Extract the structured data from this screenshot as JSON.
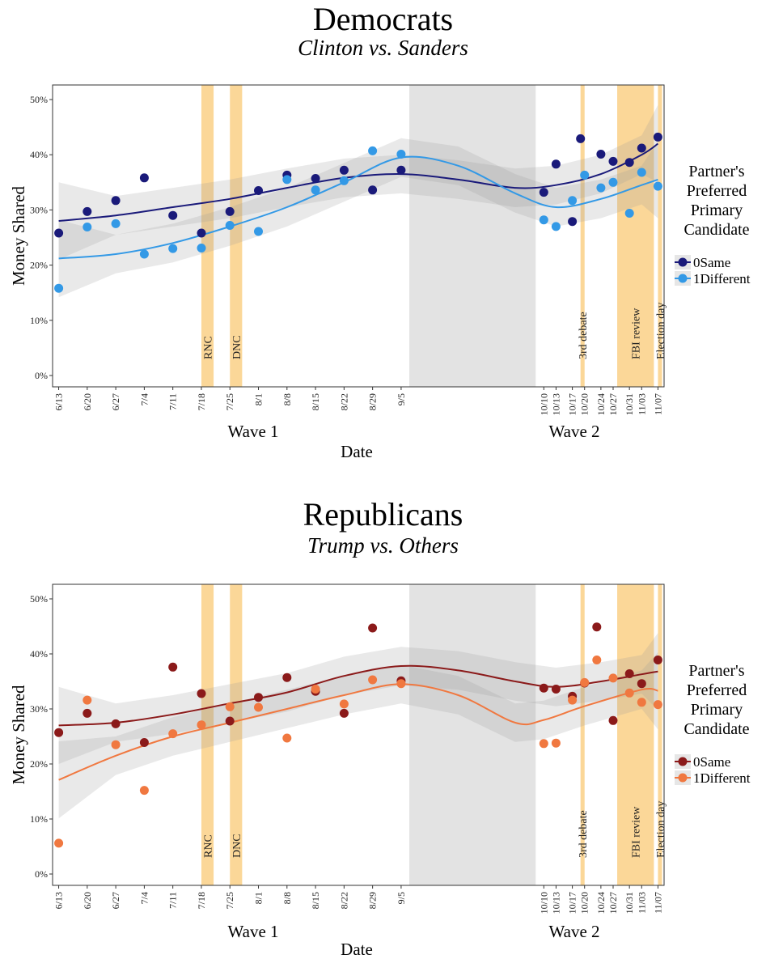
{
  "chart_data": [
    {
      "type": "scatter",
      "title": "Democrats",
      "subtitle": "Clinton vs. Sanders",
      "xlabel": "Date",
      "ylabel": "Money Shared",
      "ylim": [
        0,
        50
      ],
      "yticks": [
        "0%",
        "10%",
        "20%",
        "30%",
        "40%",
        "50%"
      ],
      "x_tick_labels": [
        "6/13",
        "6/20",
        "6/27",
        "7/4",
        "7/11",
        "7/18",
        "7/25",
        "8/1",
        "8/8",
        "8/15",
        "8/22",
        "8/29",
        "9/5",
        "10/10",
        "10/13",
        "10/17",
        "10/20",
        "10/24",
        "10/27",
        "10/31",
        "11/03",
        "11/07"
      ],
      "wave_labels": [
        "Wave 1",
        "Wave 2"
      ],
      "events": [
        {
          "label": "RNC",
          "from": "7/18",
          "to": "7/21"
        },
        {
          "label": "DNC",
          "from": "7/25",
          "to": "7/28"
        },
        {
          "label": "3rd debate",
          "from": "10/19",
          "to": "10/20"
        },
        {
          "label": "FBI review",
          "from": "10/28",
          "to": "11/06"
        },
        {
          "label": "Election day",
          "from": "11/07",
          "to": "11/08"
        }
      ],
      "gap": {
        "from": "9/7",
        "to": "10/8"
      },
      "legend": {
        "title": "Partner's Preferred Primary Candidate",
        "position": "right",
        "items": [
          "0Same",
          "1Different"
        ]
      },
      "series": [
        {
          "name": "0Same",
          "color": "#1a1a7a",
          "points": [
            [
              "6/13",
              25.8
            ],
            [
              "6/20",
              29.7
            ],
            [
              "6/27",
              31.7
            ],
            [
              "7/4",
              35.8
            ],
            [
              "7/11",
              29
            ],
            [
              "7/18",
              25.8
            ],
            [
              "7/25",
              29.7
            ],
            [
              "8/1",
              33.5
            ],
            [
              "8/8",
              36.3
            ],
            [
              "8/15",
              35.7
            ],
            [
              "8/22",
              37.2
            ],
            [
              "8/29",
              33.6
            ],
            [
              "9/5",
              37.2
            ],
            [
              "10/10",
              33.2
            ],
            [
              "10/13",
              38.3
            ],
            [
              "10/17",
              27.9
            ],
            [
              "10/19",
              42.9
            ],
            [
              "10/24",
              40.1
            ],
            [
              "10/27",
              38.8
            ],
            [
              "10/31",
              38.6
            ],
            [
              "11/03",
              41.2
            ],
            [
              "11/07",
              43.2
            ]
          ],
          "trend": [
            [
              "6/13",
              28
            ],
            [
              "6/27",
              29
            ],
            [
              "7/11",
              30.5
            ],
            [
              "7/25",
              32
            ],
            [
              "8/8",
              34
            ],
            [
              "8/22",
              35.8
            ],
            [
              "9/5",
              36.5
            ],
            [
              "9/19",
              35.5
            ],
            [
              "10/03",
              34
            ],
            [
              "10/13",
              34.5
            ],
            [
              "10/24",
              36.5
            ],
            [
              "11/03",
              40
            ],
            [
              "11/07",
              42
            ]
          ]
        },
        {
          "name": "1Different",
          "color": "#3399e6",
          "points": [
            [
              "6/13",
              15.8
            ],
            [
              "6/20",
              26.9
            ],
            [
              "6/27",
              27.5
            ],
            [
              "7/4",
              22
            ],
            [
              "7/11",
              23
            ],
            [
              "7/18",
              23.1
            ],
            [
              "7/25",
              27.2
            ],
            [
              "8/1",
              26.1
            ],
            [
              "8/8",
              35.5
            ],
            [
              "8/15",
              33.6
            ],
            [
              "8/22",
              35.3
            ],
            [
              "8/29",
              40.7
            ],
            [
              "9/5",
              40.1
            ],
            [
              "10/10",
              28.2
            ],
            [
              "10/13",
              27
            ],
            [
              "10/17",
              31.7
            ],
            [
              "10/20",
              36.3
            ],
            [
              "10/24",
              34
            ],
            [
              "10/27",
              35
            ],
            [
              "10/31",
              29.4
            ],
            [
              "11/03",
              36.8
            ],
            [
              "11/07",
              34.3
            ]
          ],
          "trend": [
            [
              "6/13",
              21.2
            ],
            [
              "6/27",
              22
            ],
            [
              "7/11",
              24
            ],
            [
              "7/25",
              27
            ],
            [
              "8/8",
              30.5
            ],
            [
              "8/22",
              35
            ],
            [
              "9/5",
              39.5
            ],
            [
              "9/19",
              38
            ],
            [
              "10/03",
              33
            ],
            [
              "10/13",
              30.5
            ],
            [
              "10/24",
              32
            ],
            [
              "11/03",
              34.5
            ],
            [
              "11/07",
              35.5
            ]
          ]
        }
      ]
    },
    {
      "type": "scatter",
      "title": "Republicans",
      "subtitle": "Trump vs. Others",
      "xlabel": "Date",
      "ylabel": "Money Shared",
      "ylim": [
        0,
        50
      ],
      "yticks": [
        "0%",
        "10%",
        "20%",
        "30%",
        "40%",
        "50%"
      ],
      "x_tick_labels": [
        "6/13",
        "6/20",
        "6/27",
        "7/4",
        "7/11",
        "7/18",
        "7/25",
        "8/1",
        "8/8",
        "8/15",
        "8/22",
        "8/29",
        "9/5",
        "10/10",
        "10/13",
        "10/17",
        "10/20",
        "10/24",
        "10/27",
        "10/31",
        "11/03",
        "11/07"
      ],
      "wave_labels": [
        "Wave 1",
        "Wave 2"
      ],
      "events": [
        {
          "label": "RNC",
          "from": "7/18",
          "to": "7/21"
        },
        {
          "label": "DNC",
          "from": "7/25",
          "to": "7/28"
        },
        {
          "label": "3rd debate",
          "from": "10/19",
          "to": "10/20"
        },
        {
          "label": "FBI review",
          "from": "10/28",
          "to": "11/06"
        },
        {
          "label": "Election day",
          "from": "11/07",
          "to": "11/08"
        }
      ],
      "gap": {
        "from": "9/7",
        "to": "10/8"
      },
      "legend": {
        "title": "Partner's Preferred Primary Candidate",
        "position": "right",
        "items": [
          "0Same",
          "1Different"
        ]
      },
      "series": [
        {
          "name": "0Same",
          "color": "#8b1a1a",
          "points": [
            [
              "6/13",
              25.7
            ],
            [
              "6/20",
              29.2
            ],
            [
              "6/27",
              27.3
            ],
            [
              "7/4",
              23.9
            ],
            [
              "7/11",
              37.6
            ],
            [
              "7/18",
              32.8
            ],
            [
              "7/25",
              27.8
            ],
            [
              "8/1",
              32.1
            ],
            [
              "8/8",
              35.7
            ],
            [
              "8/15",
              33.2
            ],
            [
              "8/22",
              29.2
            ],
            [
              "8/29",
              44.7
            ],
            [
              "9/5",
              35.1
            ],
            [
              "10/10",
              33.8
            ],
            [
              "10/13",
              33.6
            ],
            [
              "10/17",
              32.3
            ],
            [
              "10/20",
              34.7
            ],
            [
              "10/23",
              44.9
            ],
            [
              "10/27",
              27.9
            ],
            [
              "10/31",
              36.4
            ],
            [
              "11/03",
              34.6
            ],
            [
              "11/07",
              38.9
            ]
          ],
          "trend": [
            [
              "6/13",
              27
            ],
            [
              "6/27",
              27.5
            ],
            [
              "7/11",
              29
            ],
            [
              "7/25",
              31
            ],
            [
              "8/8",
              33
            ],
            [
              "8/22",
              36
            ],
            [
              "9/5",
              37.8
            ],
            [
              "9/19",
              37
            ],
            [
              "10/03",
              35
            ],
            [
              "10/13",
              34
            ],
            [
              "10/24",
              35
            ],
            [
              "11/03",
              36.3
            ],
            [
              "11/07",
              36.8
            ]
          ]
        },
        {
          "name": "1Different",
          "color": "#f07840",
          "points": [
            [
              "6/13",
              5.6
            ],
            [
              "6/20",
              31.6
            ],
            [
              "6/27",
              23.5
            ],
            [
              "7/4",
              15.2
            ],
            [
              "7/11",
              25.5
            ],
            [
              "7/18",
              27.1
            ],
            [
              "7/25",
              30.4
            ],
            [
              "8/1",
              30.3
            ],
            [
              "8/8",
              24.7
            ],
            [
              "8/15",
              33.6
            ],
            [
              "8/22",
              30.9
            ],
            [
              "8/29",
              35.3
            ],
            [
              "9/5",
              34.6
            ],
            [
              "10/10",
              23.7
            ],
            [
              "10/13",
              23.8
            ],
            [
              "10/17",
              31.6
            ],
            [
              "10/20",
              34.8
            ],
            [
              "10/23",
              38.9
            ],
            [
              "10/27",
              35.6
            ],
            [
              "10/31",
              32.9
            ],
            [
              "11/03",
              31.2
            ],
            [
              "11/07",
              30.8
            ]
          ],
          "trend": [
            [
              "6/13",
              17.1
            ],
            [
              "6/27",
              21.5
            ],
            [
              "7/11",
              25
            ],
            [
              "7/25",
              27.5
            ],
            [
              "8/8",
              30
            ],
            [
              "8/22",
              32.5
            ],
            [
              "9/5",
              34.5
            ],
            [
              "9/19",
              32.5
            ],
            [
              "10/03",
              27.5
            ],
            [
              "10/10",
              28
            ],
            [
              "10/20",
              30.5
            ],
            [
              "11/03",
              33.5
            ],
            [
              "11/07",
              33.3
            ]
          ]
        }
      ]
    }
  ]
}
